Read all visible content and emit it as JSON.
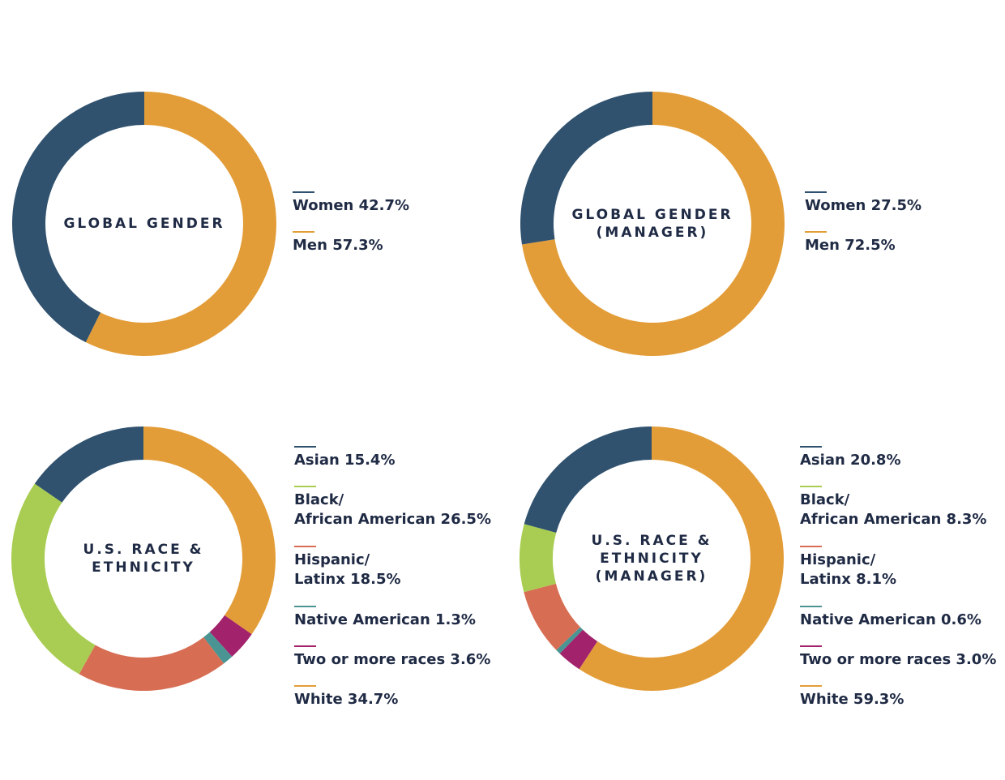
{
  "colors": {
    "navy": "#30526f",
    "orange": "#e39d38",
    "green": "#a9cd52",
    "coral": "#d76e54",
    "teal": "#4a9593",
    "magenta": "#a2226b",
    "text": "#1f2a44"
  },
  "chart_data": [
    {
      "type": "pie",
      "title": "GLOBAL GENDER",
      "series": [
        {
          "name": "Women",
          "label": "Women 42.7%",
          "value": 42.7,
          "color": "#30526f"
        },
        {
          "name": "Men",
          "label": "Men 57.3%",
          "value": 57.3,
          "color": "#e39d38"
        }
      ],
      "legend": "right"
    },
    {
      "type": "pie",
      "title": "GLOBAL GENDER\n(MANAGER)",
      "series": [
        {
          "name": "Women",
          "label": "Women 27.5%",
          "value": 27.5,
          "color": "#30526f"
        },
        {
          "name": "Men",
          "label": "Men 72.5%",
          "value": 72.5,
          "color": "#e39d38"
        }
      ],
      "legend": "right"
    },
    {
      "type": "pie",
      "title": "U.S. RACE &\nETHNICITY",
      "series": [
        {
          "name": "Asian",
          "label": "Asian 15.4%",
          "value": 15.4,
          "color": "#30526f"
        },
        {
          "name": "Black/African American",
          "label": "Black/\nAfrican American 26.5%",
          "value": 26.5,
          "color": "#a9cd52"
        },
        {
          "name": "Hispanic/Latinx",
          "label": "Hispanic/\nLatinx 18.5%",
          "value": 18.5,
          "color": "#d76e54"
        },
        {
          "name": "Native American",
          "label": "Native American 1.3%",
          "value": 1.3,
          "color": "#4a9593"
        },
        {
          "name": "Two or more races",
          "label": "Two or more races 3.6%",
          "value": 3.6,
          "color": "#a2226b"
        },
        {
          "name": "White",
          "label": "White 34.7%",
          "value": 34.7,
          "color": "#e39d38"
        }
      ],
      "legend": "right"
    },
    {
      "type": "pie",
      "title": "U.S. RACE &\nETHNICITY\n(MANAGER)",
      "series": [
        {
          "name": "Asian",
          "label": "Asian 20.8%",
          "value": 20.8,
          "color": "#30526f"
        },
        {
          "name": "Black/African American",
          "label": "Black/\nAfrican American 8.3%",
          "value": 8.3,
          "color": "#a9cd52"
        },
        {
          "name": "Hispanic/Latinx",
          "label": "Hispanic/\nLatinx 8.1%",
          "value": 8.1,
          "color": "#d76e54"
        },
        {
          "name": "Native American",
          "label": "Native American 0.6%",
          "value": 0.6,
          "color": "#4a9593"
        },
        {
          "name": "Two or more races",
          "label": "Two or more races 3.0%",
          "value": 3.0,
          "color": "#a2226b"
        },
        {
          "name": "White",
          "label": "White 59.3%",
          "value": 59.3,
          "color": "#e39d38"
        }
      ],
      "legend": "right"
    }
  ]
}
